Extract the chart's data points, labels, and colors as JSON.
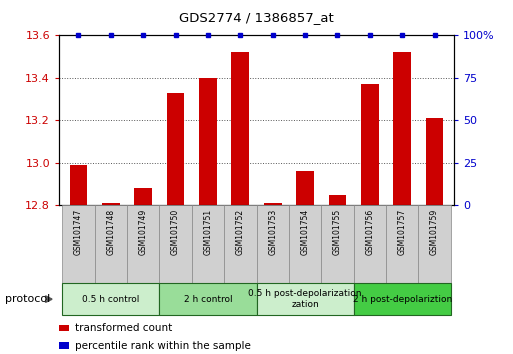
{
  "title": "GDS2774 / 1386857_at",
  "samples": [
    "GSM101747",
    "GSM101748",
    "GSM101749",
    "GSM101750",
    "GSM101751",
    "GSM101752",
    "GSM101753",
    "GSM101754",
    "GSM101755",
    "GSM101756",
    "GSM101757",
    "GSM101759"
  ],
  "bar_values": [
    12.99,
    12.81,
    12.88,
    13.33,
    13.4,
    13.52,
    12.81,
    12.96,
    12.85,
    13.37,
    13.52,
    13.21
  ],
  "percentile_values": [
    100,
    100,
    100,
    100,
    100,
    100,
    100,
    100,
    100,
    100,
    100,
    100
  ],
  "ylim_left": [
    12.8,
    13.6
  ],
  "ylim_right": [
    0,
    100
  ],
  "yticks_left": [
    12.8,
    13.0,
    13.2,
    13.4,
    13.6
  ],
  "yticks_right": [
    0,
    25,
    50,
    75,
    100
  ],
  "bar_color": "#cc0000",
  "percentile_color": "#0000cc",
  "bar_width": 0.55,
  "groups": [
    {
      "label": "0.5 h control",
      "start": 0,
      "end": 3,
      "color": "#cceecc"
    },
    {
      "label": "2 h control",
      "start": 3,
      "end": 6,
      "color": "#99dd99"
    },
    {
      "label": "0.5 h post-depolarization",
      "start": 6,
      "end": 9,
      "color": "#cceecc"
    },
    {
      "label": "2 h post-depolariztion",
      "start": 9,
      "end": 12,
      "color": "#44cc44"
    }
  ],
  "protocol_label": "protocol",
  "legend_bar_label": "transformed count",
  "legend_pct_label": "percentile rank within the sample",
  "grid_color": "#555555",
  "bg_color": "#ffffff",
  "label_area_color": "#d0d0d0",
  "group_border_color": "#226622",
  "label_border_color": "#888888"
}
